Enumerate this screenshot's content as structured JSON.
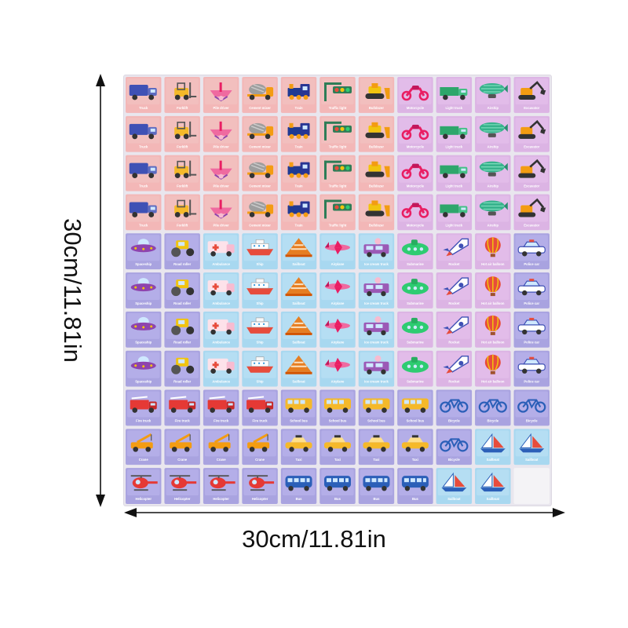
{
  "dimensions": {
    "width_label": "30cm/11.81in",
    "height_label": "30cm/11.81in"
  },
  "colors": {
    "pink": "#f3b7b7",
    "pink2": "#f1c6c4",
    "lilac": "#dcb4e4",
    "lilac2": "#e7c3ec",
    "sky": "#a8d8f0",
    "sky2": "#bfe3f5",
    "violet": "#a9a3e0",
    "violet2": "#bdb8ee",
    "board": "#e9e6ee"
  },
  "grid": {
    "columns": 11,
    "rows": [
      [
        [
          "pink",
          "truck-icon",
          "Truck"
        ],
        [
          "pink",
          "forklift-icon",
          "Forklift"
        ],
        [
          "pink",
          "drill-rig-icon",
          "Pile driver"
        ],
        [
          "pink",
          "mixer-truck-icon",
          "Cement mixer"
        ],
        [
          "pink",
          "train-icon",
          "Train"
        ],
        [
          "pink",
          "traffic-light-icon",
          "Traffic light"
        ],
        [
          "pink",
          "bulldozer-icon",
          "Bulldozer"
        ],
        [
          "lilac",
          "motorcycle-icon",
          "Motorcycle"
        ],
        [
          "lilac",
          "light-truck-icon",
          "Light truck"
        ],
        [
          "lilac",
          "airship-icon",
          "Airship"
        ],
        [
          "lilac",
          "excavator-icon",
          "Excavator"
        ]
      ],
      [
        [
          "pink",
          "truck-icon",
          "Truck"
        ],
        [
          "pink",
          "forklift-icon",
          "Forklift"
        ],
        [
          "pink",
          "drill-rig-icon",
          "Pile driver"
        ],
        [
          "pink",
          "mixer-truck-icon",
          "Cement mixer"
        ],
        [
          "pink",
          "train-icon",
          "Train"
        ],
        [
          "pink",
          "traffic-light-icon",
          "Traffic light"
        ],
        [
          "pink",
          "bulldozer-icon",
          "Bulldozer"
        ],
        [
          "lilac",
          "motorcycle-icon",
          "Motorcycle"
        ],
        [
          "lilac",
          "light-truck-icon",
          "Light truck"
        ],
        [
          "lilac",
          "airship-icon",
          "Airship"
        ],
        [
          "lilac",
          "excavator-icon",
          "Excavator"
        ]
      ],
      [
        [
          "pink",
          "truck-icon",
          "Truck"
        ],
        [
          "pink",
          "forklift-icon",
          "Forklift"
        ],
        [
          "pink",
          "drill-rig-icon",
          "Pile driver"
        ],
        [
          "pink",
          "mixer-truck-icon",
          "Cement mixer"
        ],
        [
          "pink",
          "train-icon",
          "Train"
        ],
        [
          "pink",
          "traffic-light-icon",
          "Traffic light"
        ],
        [
          "pink",
          "bulldozer-icon",
          "Bulldozer"
        ],
        [
          "lilac",
          "motorcycle-icon",
          "Motorcycle"
        ],
        [
          "lilac",
          "light-truck-icon",
          "Light truck"
        ],
        [
          "lilac",
          "airship-icon",
          "Airship"
        ],
        [
          "lilac",
          "excavator-icon",
          "Excavator"
        ]
      ],
      [
        [
          "pink",
          "truck-icon",
          "Truck"
        ],
        [
          "pink",
          "forklift-icon",
          "Forklift"
        ],
        [
          "pink",
          "drill-rig-icon",
          "Pile driver"
        ],
        [
          "pink",
          "mixer-truck-icon",
          "Cement mixer"
        ],
        [
          "pink",
          "train-icon",
          "Train"
        ],
        [
          "pink",
          "traffic-light-icon",
          "Traffic light"
        ],
        [
          "pink",
          "bulldozer-icon",
          "Bulldozer"
        ],
        [
          "lilac",
          "motorcycle-icon",
          "Motorcycle"
        ],
        [
          "lilac",
          "light-truck-icon",
          "Light truck"
        ],
        [
          "lilac",
          "airship-icon",
          "Airship"
        ],
        [
          "lilac",
          "excavator-icon",
          "Excavator"
        ]
      ],
      [
        [
          "violet",
          "ufo-icon",
          "Spaceship"
        ],
        [
          "violet",
          "roller-icon",
          "Road roller"
        ],
        [
          "sky",
          "ambulance-icon",
          "Ambulance"
        ],
        [
          "sky",
          "ship-icon",
          "Ship"
        ],
        [
          "sky",
          "sailboat-icon",
          "Sailboat"
        ],
        [
          "sky",
          "airplane-icon",
          "Airplane"
        ],
        [
          "sky",
          "ice-cream-truck-icon",
          "Ice cream truck"
        ],
        [
          "lilac",
          "submarine-icon",
          "Submarine"
        ],
        [
          "lilac",
          "rocket-icon",
          "Rocket"
        ],
        [
          "lilac",
          "balloon-icon",
          "Hot air balloon"
        ],
        [
          "violet",
          "police-car-icon",
          "Police car"
        ]
      ],
      [
        [
          "violet",
          "ufo-icon",
          "Spaceship"
        ],
        [
          "violet",
          "roller-icon",
          "Road roller"
        ],
        [
          "sky",
          "ambulance-icon",
          "Ambulance"
        ],
        [
          "sky",
          "ship-icon",
          "Ship"
        ],
        [
          "sky",
          "sailboat-icon",
          "Sailboat"
        ],
        [
          "sky",
          "airplane-icon",
          "Airplane"
        ],
        [
          "sky",
          "ice-cream-truck-icon",
          "Ice cream truck"
        ],
        [
          "lilac",
          "submarine-icon",
          "Submarine"
        ],
        [
          "lilac",
          "rocket-icon",
          "Rocket"
        ],
        [
          "lilac",
          "balloon-icon",
          "Hot air balloon"
        ],
        [
          "violet",
          "police-car-icon",
          "Police car"
        ]
      ],
      [
        [
          "violet",
          "ufo-icon",
          "Spaceship"
        ],
        [
          "violet",
          "roller-icon",
          "Road roller"
        ],
        [
          "sky",
          "ambulance-icon",
          "Ambulance"
        ],
        [
          "sky",
          "ship-icon",
          "Ship"
        ],
        [
          "sky",
          "sailboat-icon",
          "Sailboat"
        ],
        [
          "sky",
          "airplane-icon",
          "Airplane"
        ],
        [
          "sky",
          "ice-cream-truck-icon",
          "Ice cream truck"
        ],
        [
          "lilac",
          "submarine-icon",
          "Submarine"
        ],
        [
          "lilac",
          "rocket-icon",
          "Rocket"
        ],
        [
          "lilac",
          "balloon-icon",
          "Hot air balloon"
        ],
        [
          "violet",
          "police-car-icon",
          "Police car"
        ]
      ],
      [
        [
          "violet",
          "ufo-icon",
          "Spaceship"
        ],
        [
          "violet",
          "roller-icon",
          "Road roller"
        ],
        [
          "sky",
          "ambulance-icon",
          "Ambulance"
        ],
        [
          "sky",
          "ship-icon",
          "Ship"
        ],
        [
          "sky",
          "sailboat-icon",
          "Sailboat"
        ],
        [
          "sky",
          "airplane-icon",
          "Airplane"
        ],
        [
          "sky",
          "ice-cream-truck-icon",
          "Ice cream truck"
        ],
        [
          "lilac",
          "submarine-icon",
          "Submarine"
        ],
        [
          "lilac",
          "rocket-icon",
          "Rocket"
        ],
        [
          "lilac",
          "balloon-icon",
          "Hot air balloon"
        ],
        [
          "violet",
          "police-car-icon",
          "Police car"
        ]
      ],
      [
        [
          "violet",
          "fire-truck-icon",
          "Fire truck"
        ],
        [
          "violet",
          "fire-truck-icon",
          "Fire truck"
        ],
        [
          "violet",
          "fire-truck-icon",
          "Fire truck"
        ],
        [
          "violet",
          "fire-truck-icon",
          "Fire truck"
        ],
        [
          "violet",
          "school-bus-icon",
          "School bus"
        ],
        [
          "violet",
          "school-bus-icon",
          "School bus"
        ],
        [
          "violet",
          "school-bus-icon",
          "School bus"
        ],
        [
          "violet",
          "school-bus-icon",
          "School bus"
        ],
        [
          "violet",
          "bicycle-icon",
          "Bicycle"
        ],
        [
          "violet",
          "bicycle-icon",
          "Bicycle"
        ],
        [
          "violet",
          "bicycle-icon",
          "Bicycle"
        ]
      ],
      [
        [
          "violet",
          "crane-icon",
          "Crane"
        ],
        [
          "violet",
          "crane-icon",
          "Crane"
        ],
        [
          "violet",
          "crane-icon",
          "Crane"
        ],
        [
          "violet",
          "crane-icon",
          "Crane"
        ],
        [
          "violet",
          "taxi-icon",
          "Taxi"
        ],
        [
          "violet",
          "taxi-icon",
          "Taxi"
        ],
        [
          "violet",
          "taxi-icon",
          "Taxi"
        ],
        [
          "violet",
          "taxi-icon",
          "Taxi"
        ],
        [
          "violet",
          "bicycle-icon",
          "Bicycle"
        ],
        [
          "sky",
          "sailboat2-icon",
          "Sailboat"
        ],
        [
          "sky",
          "sailboat2-icon",
          "Sailboat"
        ]
      ],
      [
        [
          "violet",
          "helicopter-icon",
          "Helicopter"
        ],
        [
          "violet",
          "helicopter-icon",
          "Helicopter"
        ],
        [
          "violet",
          "helicopter-icon",
          "Helicopter"
        ],
        [
          "violet",
          "helicopter-icon",
          "Helicopter"
        ],
        [
          "violet",
          "bus-icon",
          "Bus"
        ],
        [
          "violet",
          "bus-icon",
          "Bus"
        ],
        [
          "violet",
          "bus-icon",
          "Bus"
        ],
        [
          "violet",
          "bus-icon",
          "Bus"
        ],
        [
          "sky",
          "sailboat2-icon",
          "Sailboat"
        ],
        [
          "sky",
          "sailboat2-icon",
          "Sailboat"
        ],
        [
          "empty",
          "",
          ""
        ]
      ]
    ]
  }
}
